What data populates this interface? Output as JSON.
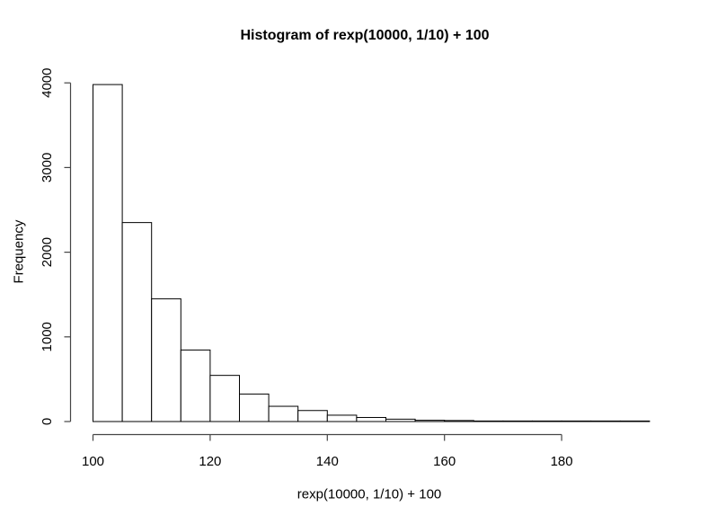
{
  "figure": {
    "title": "Histogram of rexp(10000, 1/10) + 100",
    "xlabel": "rexp(10000, 1/10) + 100",
    "ylabel": "Frequency"
  },
  "chart_data": {
    "type": "bar",
    "subtype": "histogram",
    "title": "Histogram of rexp(10000, 1/10) + 100",
    "xlabel": "rexp(10000, 1/10) + 100",
    "ylabel": "Frequency",
    "n_total": 10000,
    "bin_start": 100,
    "bin_width": 5,
    "bin_edges": [
      100,
      105,
      110,
      115,
      120,
      125,
      130,
      135,
      140,
      145,
      150,
      155,
      160,
      165,
      170,
      175,
      180,
      185,
      190,
      195
    ],
    "counts": [
      3980,
      2350,
      1450,
      845,
      545,
      325,
      180,
      130,
      75,
      48,
      28,
      15,
      12,
      6,
      4,
      3,
      2,
      1,
      1
    ],
    "xlim": [
      100,
      195
    ],
    "ylim": [
      0,
      4000
    ],
    "x_ticks": [
      100,
      120,
      140,
      160,
      180
    ],
    "y_ticks": [
      0,
      1000,
      2000,
      3000,
      4000
    ],
    "grid": false,
    "legend": null,
    "bar_fill": "#ffffff",
    "bar_stroke": "#000000",
    "axis_color": "#454545",
    "text_color": "#000000",
    "background": "#ffffff"
  }
}
